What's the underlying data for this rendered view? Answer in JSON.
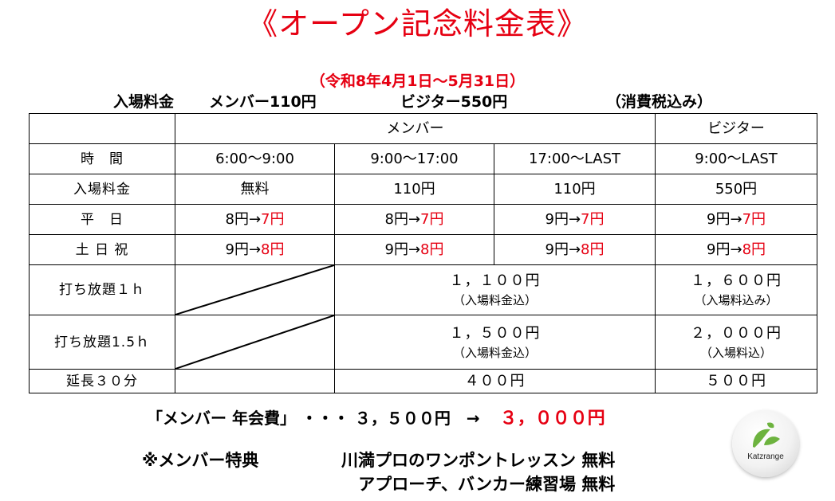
{
  "title": "《オープン記念料金表》",
  "period": "（令和8年4月1日～5月31日）",
  "admission_line": {
    "label": "入場料金",
    "member": "メンバー110円",
    "visitor": "ビジター550円",
    "tax_note": "（消費税込み）"
  },
  "table": {
    "header": {
      "member": "メンバー",
      "visitor": "ビジター"
    },
    "rows": {
      "time": {
        "label": "時　間",
        "cells": [
          "6:00～9:00",
          "9:00～17:00",
          "17:00～LAST",
          "9:00～LAST"
        ]
      },
      "entry": {
        "label": "入場料金",
        "cells": [
          "無料",
          "110円",
          "110円",
          "550円"
        ]
      },
      "weekday": {
        "label": "平　日",
        "cells": [
          {
            "old": "8円→",
            "new": "7円"
          },
          {
            "old": "8円→",
            "new": "7円"
          },
          {
            "old": "9円→",
            "new": "7円"
          },
          {
            "old": "9円→",
            "new": "7円"
          }
        ]
      },
      "holiday": {
        "label": "土 日 祝",
        "cells": [
          {
            "old": "9円→",
            "new": "8円"
          },
          {
            "old": "9円→",
            "new": "8円"
          },
          {
            "old": "9円→",
            "new": "8円"
          },
          {
            "old": "9円→",
            "new": "8円"
          }
        ]
      },
      "unlimited_1h": {
        "label": "打ち放題１ｈ",
        "member_price": "１，１００円",
        "member_note": "（入場料金込）",
        "visitor_price": "１，６００円",
        "visitor_note": "（入場料込み）"
      },
      "unlimited_15h": {
        "label": "打ち放題1.5ｈ",
        "member_price": "１，５００円",
        "member_note": "（入場料金込）",
        "visitor_price": "２，０００円",
        "visitor_note": "（入場料込）"
      },
      "extension": {
        "label": "延長３０分",
        "member_price": "４００円",
        "visitor_price": "５００円"
      }
    }
  },
  "annual_fee": {
    "label": "「メンバー 年会費」 ・・・ ３，５００円　→",
    "new_price": "３，０００円"
  },
  "benefits": {
    "heading": "※メンバー特典",
    "items": [
      "川満プロのワンポントレッスン 無料",
      "アプローチ、バンカー練習場 無料"
    ]
  },
  "logo": {
    "brand": "Katzrange",
    "icon": "golf-ball-leaf-logo"
  },
  "colors": {
    "accent_red": "#e60012",
    "logo_green": "#6db33f"
  }
}
